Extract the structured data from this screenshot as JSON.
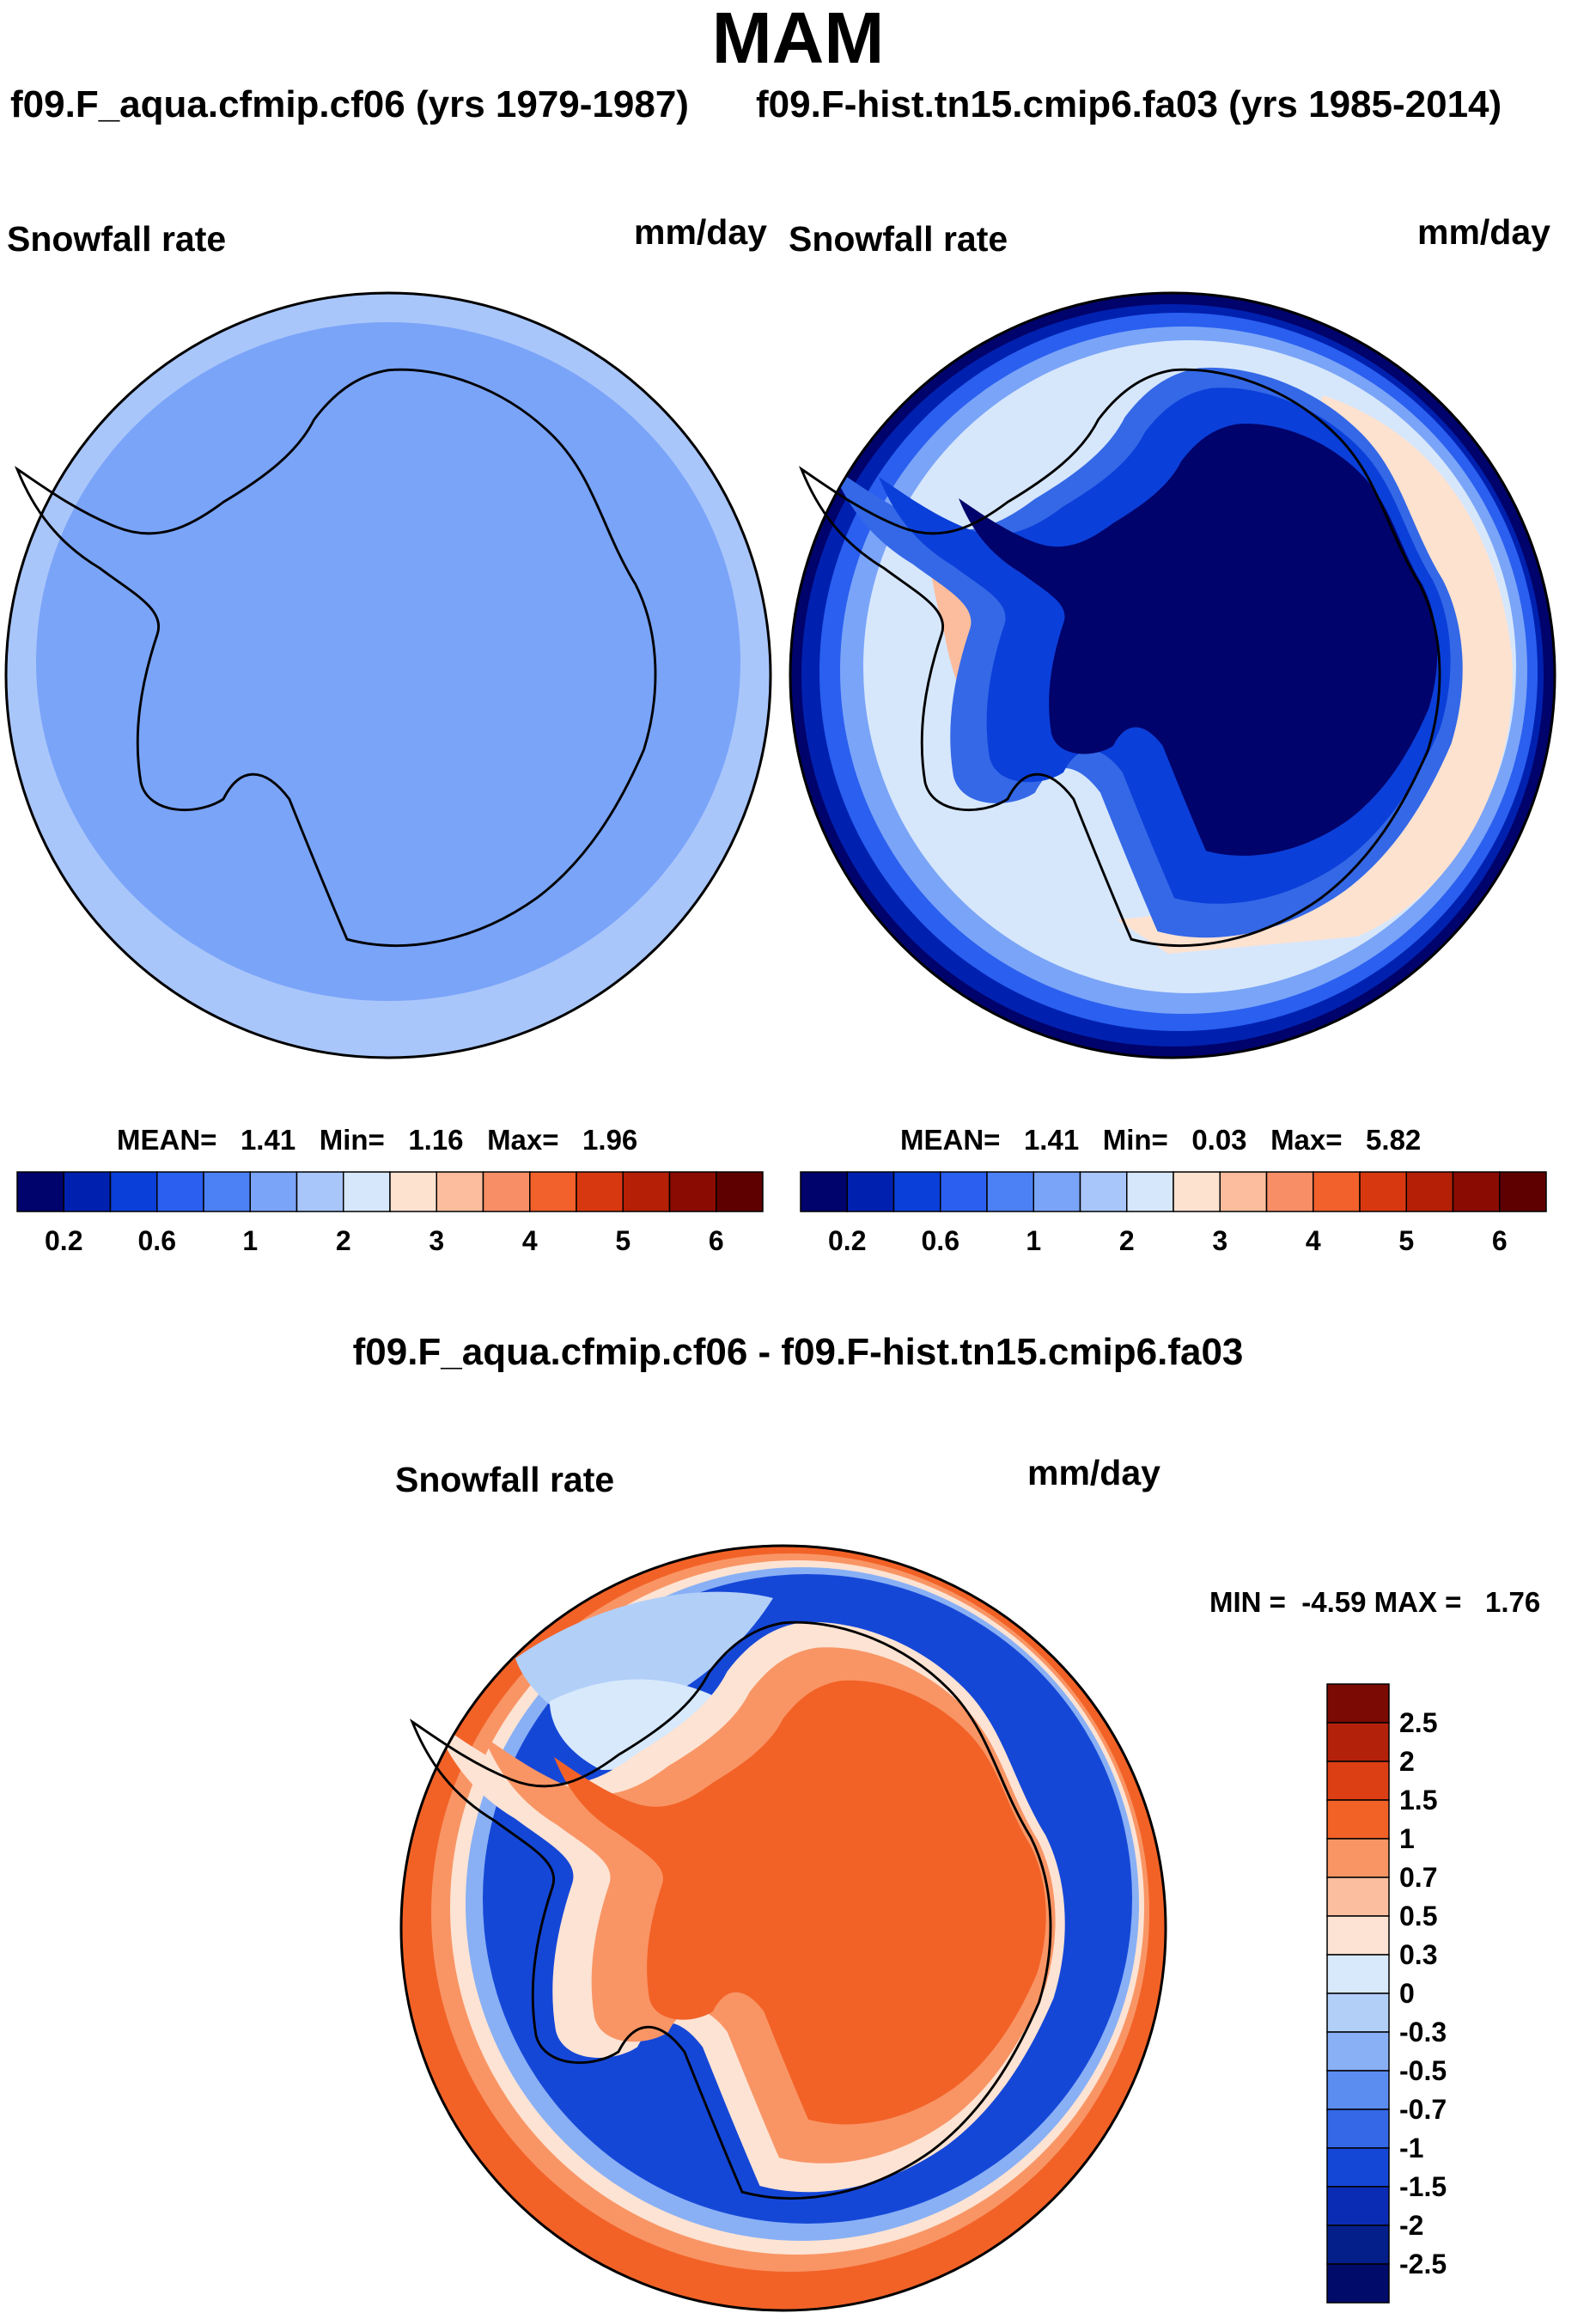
{
  "title": "MAM",
  "panels": {
    "left": {
      "case_title": "f09.F_aqua.cfmip.cf06 (yrs 1979-1987)",
      "variable": "Snowfall rate",
      "units": "mm/day",
      "stats": {
        "mean_label": "MEAN=",
        "mean": "1.41",
        "min_label": "Min=",
        "min": "1.16",
        "max_label": "Max=",
        "max": "1.96"
      }
    },
    "right": {
      "case_title": "f09.F-hist.tn15.cmip6.fa03 (yrs 1985-2014)",
      "variable": "Snowfall rate",
      "units": "mm/day",
      "stats": {
        "mean_label": "MEAN=",
        "mean": "1.41",
        "min_label": "Min=",
        "min": "0.03",
        "max_label": "Max=",
        "max": "5.82"
      }
    },
    "diff": {
      "case_title": "f09.F_aqua.cfmip.cf06 - f09.F-hist.tn15.cmip6.fa03",
      "variable": "Snowfall rate",
      "units": "mm/day",
      "minmax": {
        "min_label": "MIN =",
        "min": "-4.59",
        "max_label": "MAX =",
        "max": "1.76"
      }
    }
  },
  "chart_data": [
    {
      "type": "heatmap",
      "projection": "south-polar stereographic",
      "title": "Snowfall rate",
      "units": "mm/day",
      "case": "f09.F_aqua.cfmip.cf06 (yrs 1979-1987)",
      "mean": 1.41,
      "min": 1.16,
      "max": 1.96,
      "colorbar_ticks": [
        "0.2",
        "0.6",
        "1",
        "2",
        "3",
        "4",
        "5",
        "6"
      ],
      "levels": [
        0.2,
        0.4,
        0.6,
        0.8,
        1,
        1.5,
        2,
        2.5,
        3,
        3.5,
        4,
        4.5,
        5,
        5.5,
        6
      ],
      "colors": [
        "#00036b",
        "#0021b0",
        "#0b3fd9",
        "#2a5ff0",
        "#4c80f5",
        "#7aa4f8",
        "#a9c6fb",
        "#d6e7fc",
        "#fde2d0",
        "#fbbd9d",
        "#f88e65",
        "#f2602b",
        "#d83810",
        "#b51f05",
        "#8a0b02",
        "#5e0000"
      ]
    },
    {
      "type": "heatmap",
      "projection": "south-polar stereographic",
      "title": "Snowfall rate",
      "units": "mm/day",
      "case": "f09.F-hist.tn15.cmip6.fa03 (yrs 1985-2014)",
      "mean": 1.41,
      "min": 0.03,
      "max": 5.82,
      "colorbar_ticks": [
        "0.2",
        "0.6",
        "1",
        "2",
        "3",
        "4",
        "5",
        "6"
      ],
      "levels": [
        0.2,
        0.4,
        0.6,
        0.8,
        1,
        1.5,
        2,
        2.5,
        3,
        3.5,
        4,
        4.5,
        5,
        5.5,
        6
      ],
      "colors": [
        "#00036b",
        "#0021b0",
        "#0b3fd9",
        "#2a5ff0",
        "#4c80f5",
        "#7aa4f8",
        "#a9c6fb",
        "#d6e7fc",
        "#fde2d0",
        "#fbbd9d",
        "#f88e65",
        "#f2602b",
        "#d83810",
        "#b51f05",
        "#8a0b02",
        "#5e0000"
      ]
    },
    {
      "type": "heatmap",
      "projection": "south-polar stereographic",
      "title": "Snowfall rate",
      "units": "mm/day",
      "case": "f09.F_aqua.cfmip.cf06 - f09.F-hist.tn15.cmip6.fa03",
      "min": -4.59,
      "max": 1.76,
      "colorbar_ticks": [
        "2.5",
        "2",
        "1.5",
        "1",
        "0.7",
        "0.5",
        "0.3",
        "0",
        "-0.3",
        "-0.5",
        "-0.7",
        "-1",
        "-1.5",
        "-2",
        "-2.5"
      ],
      "colors": [
        "#7a0a03",
        "#b3210a",
        "#dc3f14",
        "#f26227",
        "#f99565",
        "#fbbf9f",
        "#fde3d3",
        "#d7e9fb",
        "#b2cff8",
        "#89b0f5",
        "#5b8cf0",
        "#3468e7",
        "#1547d7",
        "#0a2cb5",
        "#041f8a",
        "#000b6a"
      ]
    }
  ],
  "colors": {
    "land_uniform": "#7aa4f8",
    "ocean_uniform": "#a9c6fb"
  }
}
